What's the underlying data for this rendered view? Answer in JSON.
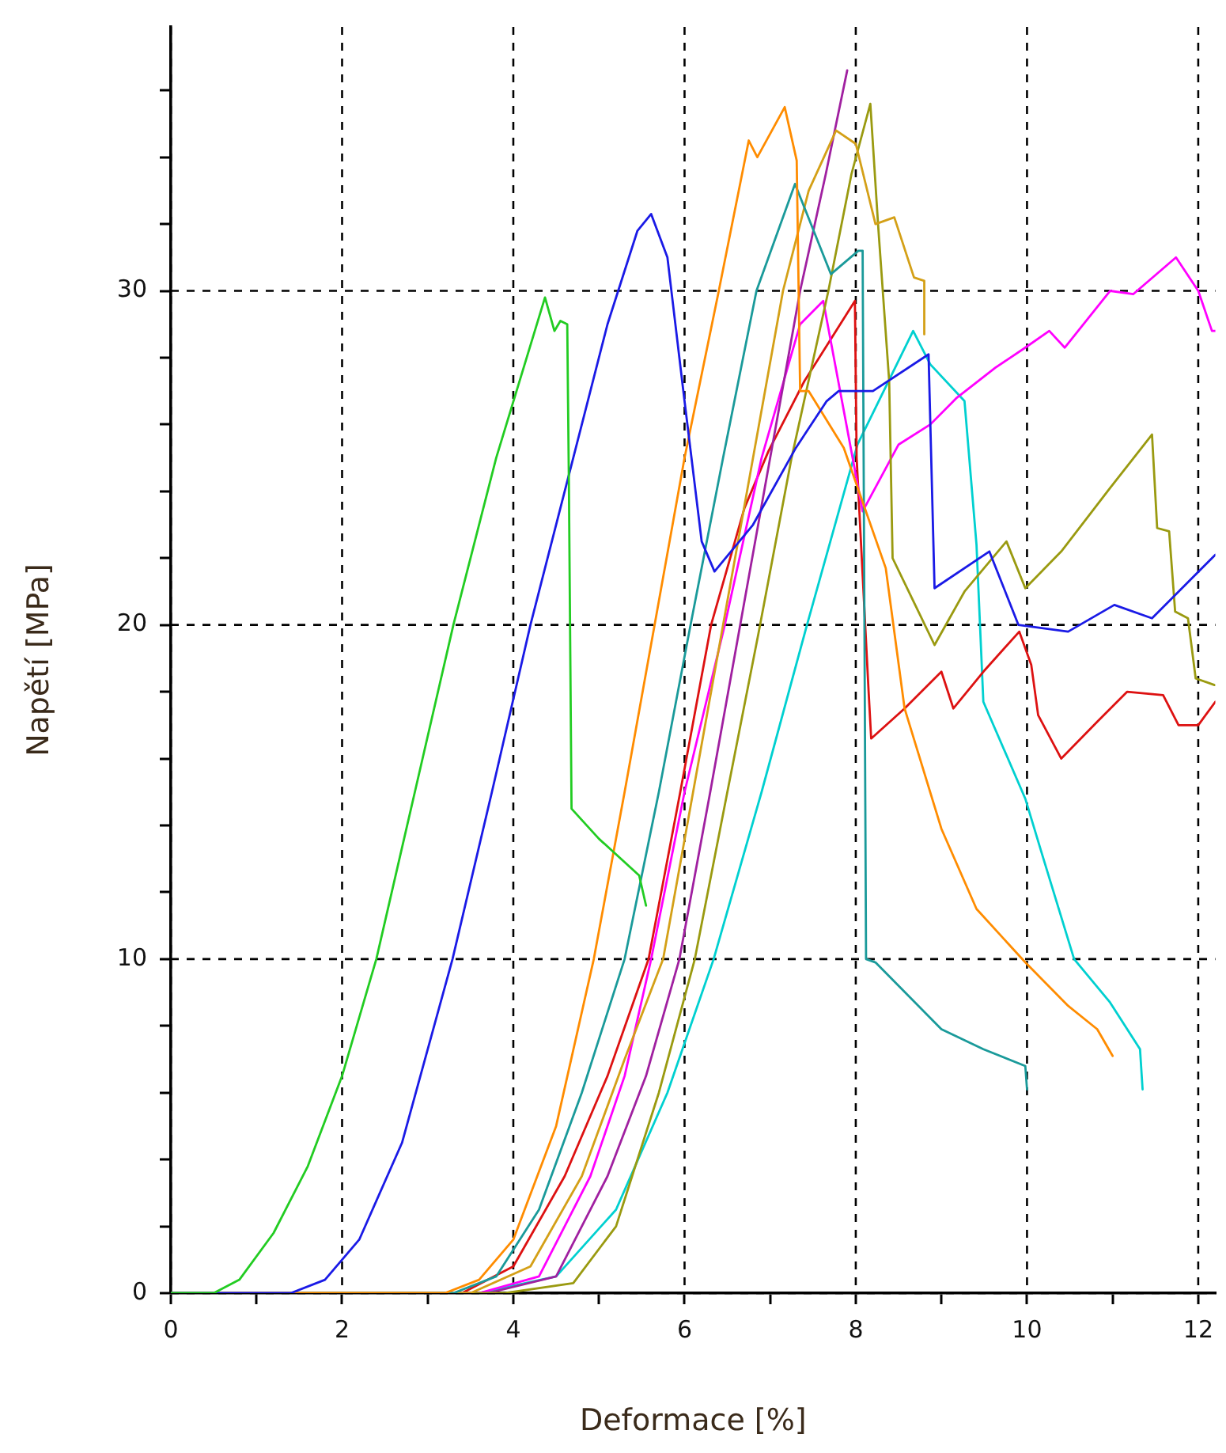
{
  "chart_data": {
    "type": "line",
    "xlabel": "Deformace [%]",
    "ylabel": "Napětí [MPa]",
    "xlim": [
      0,
      12.2
    ],
    "ylim": [
      0,
      37.9
    ],
    "xticks": [
      0,
      {
        "value": 1,
        "label": null
      },
      2,
      {
        "value": 3,
        "label": null
      },
      4,
      {
        "value": 5,
        "label": null
      },
      6,
      {
        "value": 7,
        "label": null
      },
      8,
      {
        "value": 9,
        "label": null
      },
      10,
      {
        "value": 11,
        "label": null
      },
      12
    ],
    "yticks": [
      0,
      {
        "value": 2,
        "label": null
      },
      {
        "value": 4,
        "label": null
      },
      {
        "value": 6,
        "label": null
      },
      {
        "value": 8,
        "label": null
      },
      10,
      {
        "value": 12,
        "label": null
      },
      {
        "value": 14,
        "label": null
      },
      {
        "value": 16,
        "label": null
      },
      {
        "value": 18,
        "label": null
      },
      20,
      {
        "value": 22,
        "label": null
      },
      {
        "value": 24,
        "label": null
      },
      {
        "value": 26,
        "label": null
      },
      {
        "value": 28,
        "label": null
      },
      30,
      {
        "value": 32,
        "label": null
      },
      {
        "value": 34,
        "label": null
      },
      {
        "value": 36,
        "label": null
      }
    ],
    "grid": true,
    "legend": false,
    "marker": "none",
    "line_style": "solid",
    "series": [
      {
        "color": "#22cc22",
        "x": [
          0,
          0.5,
          0.8,
          1.2,
          1.6,
          2,
          2.4,
          2.85,
          3.3,
          3.8,
          4.37,
          4.48,
          4.55,
          4.63,
          4.65,
          4.68,
          5,
          5.47,
          5.55
        ],
        "values": [
          0,
          0,
          0.4,
          1.8,
          3.8,
          6.5,
          10,
          15,
          20,
          25,
          29.8,
          28.8,
          29.1,
          29,
          24,
          14.5,
          13.6,
          12.5,
          11.6
        ]
      },
      {
        "color": "#1a1ae6",
        "x": [
          0,
          1.4,
          1.8,
          2.2,
          2.7,
          3.29,
          3.75,
          4.2,
          4.7,
          5.1,
          5.45,
          5.61,
          5.8,
          6,
          6.2,
          6.35,
          6.8,
          7.3,
          7.66,
          7.8,
          8.2,
          8.85,
          8.92,
          9.56,
          9.9,
          10.48,
          11.02,
          11.46,
          12.2
        ],
        "values": [
          0,
          0,
          0.4,
          1.6,
          4.5,
          10,
          15,
          20,
          25,
          29,
          31.8,
          32.3,
          31,
          26.7,
          22.5,
          21.6,
          23,
          25.3,
          26.7,
          27,
          27,
          28.1,
          21.1,
          22.2,
          20,
          19.8,
          20.6,
          20.2,
          22.1
        ]
      },
      {
        "color": "#ff8c00",
        "x": [
          0,
          3.2,
          3.6,
          4,
          4.5,
          4.94,
          5.3,
          5.65,
          6,
          6.4,
          6.75,
          6.85,
          7.17,
          7.31,
          7.35,
          7.45,
          7.86,
          8.35,
          8.57,
          9,
          9.41,
          9.98,
          10.48,
          10.82,
          11
        ],
        "values": [
          0,
          0,
          0.4,
          1.6,
          5,
          10,
          15,
          20,
          25,
          30,
          34.5,
          34,
          35.5,
          33.9,
          27,
          27,
          25.3,
          21.7,
          17.5,
          13.9,
          11.5,
          9.9,
          8.6,
          7.9,
          7.1
        ]
      },
      {
        "color": "#1a9a9a",
        "x": [
          0,
          3.3,
          3.8,
          4.3,
          4.8,
          5.3,
          5.7,
          6.07,
          6.45,
          6.84,
          7.29,
          7.71,
          8.03,
          8.08,
          8.12,
          8.23,
          9,
          9.49,
          9.98,
          10
        ],
        "values": [
          0,
          0,
          0.5,
          2.5,
          6,
          10,
          15,
          20,
          25,
          30,
          33.2,
          30.5,
          31.2,
          31.2,
          10,
          9.9,
          7.9,
          7.3,
          6.8,
          6.1
        ]
      },
      {
        "color": "#d4a017",
        "x": [
          0,
          3.5,
          4.2,
          4.8,
          5.3,
          5.75,
          6.1,
          6.45,
          6.8,
          7.15,
          7.45,
          7.77,
          8,
          8.23,
          8.45,
          8.68,
          8.8,
          8.8
        ],
        "values": [
          0,
          0,
          0.8,
          3.5,
          7,
          10,
          15,
          20,
          25,
          30,
          33,
          34.8,
          34.4,
          32,
          32.2,
          30.4,
          30.3,
          28.7
        ]
      },
      {
        "color": "#9a9a10",
        "x": [
          0,
          3.9,
          4.7,
          5.2,
          5.7,
          6.12,
          6.5,
          6.86,
          7.25,
          7.68,
          7.95,
          8.17,
          8.26,
          8.39,
          8.43,
          8.92,
          9.27,
          9.76,
          9.98,
          10.4,
          10.97,
          11.46,
          11.52,
          11.66,
          11.73,
          11.88,
          11.97,
          12.19
        ],
        "values": [
          0,
          0,
          0.3,
          2,
          6,
          10,
          15,
          19.7,
          25,
          30,
          33.5,
          35.6,
          32,
          27.3,
          22,
          19.4,
          21,
          22.5,
          21.1,
          22.2,
          24.1,
          25.7,
          22.9,
          22.8,
          20.4,
          20.2,
          18.4,
          18.2
        ]
      },
      {
        "color": "#a020a0",
        "x": [
          0,
          3.7,
          4.5,
          5.1,
          5.55,
          5.94,
          6.3,
          6.65,
          7,
          7.35,
          7.65,
          7.9
        ],
        "values": [
          0,
          0,
          0.5,
          3.5,
          6.5,
          10,
          15,
          20,
          25,
          30,
          33.5,
          36.6
        ]
      },
      {
        "color": "#ff00ff",
        "x": [
          0,
          3.6,
          4.3,
          4.9,
          5.3,
          5.61,
          6,
          6.47,
          6.9,
          7.35,
          7.62,
          8.08,
          8.5,
          8.87,
          9.18,
          9.63,
          9.98,
          10.26,
          10.44,
          10.97,
          11.24,
          11.74,
          12,
          12.16,
          12.2
        ],
        "values": [
          0,
          0,
          0.5,
          3.5,
          6.5,
          10,
          15,
          20,
          25,
          29,
          29.7,
          23.4,
          25.4,
          26,
          26.8,
          27.7,
          28.3,
          28.8,
          28.3,
          30,
          29.9,
          31,
          30,
          28.8,
          28.8
        ]
      },
      {
        "color": "#dd1111",
        "x": [
          0,
          3.4,
          4,
          4.6,
          5.1,
          5.58,
          5.95,
          6.31,
          6.7,
          6.98,
          7.4,
          7.99,
          8.01,
          8.15,
          8.18,
          8.57,
          9,
          9.14,
          9.49,
          9.91,
          10.05,
          10.13,
          10.4,
          10.82,
          11.17,
          11.59,
          11.77,
          12,
          12.2
        ],
        "values": [
          0,
          0,
          0.8,
          3.5,
          6.5,
          10,
          15,
          20,
          23.5,
          25.2,
          27.3,
          29.7,
          25,
          18,
          16.6,
          17.5,
          18.6,
          17.5,
          18.6,
          19.8,
          18.8,
          17.3,
          16,
          17.1,
          18,
          17.9,
          17,
          17,
          17.7
        ]
      },
      {
        "color": "#00d0d0",
        "x": [
          0,
          3.6,
          4.5,
          5.2,
          5.8,
          6.34,
          6.9,
          7.43,
          8.02,
          8.67,
          8.87,
          9.27,
          9.41,
          9.49,
          9.98,
          10.18,
          10.55,
          10.97,
          11.32,
          11.35
        ],
        "values": [
          0,
          0,
          0.5,
          2.5,
          6,
          10,
          15,
          20,
          25.4,
          28.8,
          27.8,
          26.7,
          22.4,
          17.7,
          14.8,
          13.1,
          10,
          8.7,
          7.3,
          6.1
        ]
      }
    ]
  }
}
